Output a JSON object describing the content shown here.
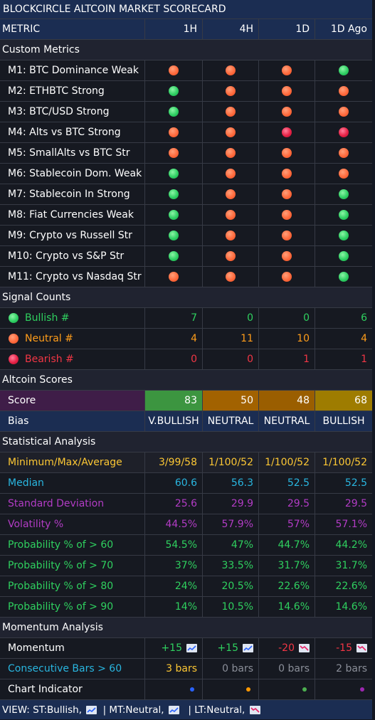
{
  "title": "BLOCKCIRCLE ALTCOIN MARKET SCORECARD",
  "header": {
    "metric": "METRIC",
    "cols": [
      "1H",
      "4H",
      "1D",
      "1D Ago"
    ]
  },
  "sections": {
    "custom": "Custom Metrics",
    "signals": "Signal Counts",
    "scores": "Altcoin Scores",
    "stats": "Statistical Analysis",
    "momentum": "Momentum Analysis"
  },
  "colors": {
    "bullish_dot": "#2fcf63",
    "neutral_dot": "#ff6a3d",
    "bearish_dot": "#e62246",
    "header_bg": "#1b2d52",
    "score_v_bullish": "#3c9540",
    "score_neutral": "#a26200",
    "score_bullish": "#9e7c00"
  },
  "metrics": [
    {
      "label": "M1: BTC Dominance Weak",
      "states": [
        "neutral",
        "neutral",
        "neutral",
        "bullish"
      ]
    },
    {
      "label": "M2: ETHBTC Strong",
      "states": [
        "bullish",
        "neutral",
        "neutral",
        "neutral"
      ]
    },
    {
      "label": "M3: BTC/USD Strong",
      "states": [
        "bullish",
        "neutral",
        "neutral",
        "neutral"
      ]
    },
    {
      "label": "M4: Alts vs BTC Strong",
      "states": [
        "neutral",
        "neutral",
        "bearish",
        "bearish"
      ]
    },
    {
      "label": "M5: SmallAlts vs BTC Str",
      "states": [
        "neutral",
        "neutral",
        "neutral",
        "neutral"
      ]
    },
    {
      "label": "M6: Stablecoin Dom. Weak",
      "states": [
        "bullish",
        "neutral",
        "neutral",
        "neutral"
      ]
    },
    {
      "label": "M7: Stablecoin In Strong",
      "states": [
        "bullish",
        "neutral",
        "neutral",
        "bullish"
      ]
    },
    {
      "label": "M8: Fiat Currencies Weak",
      "states": [
        "bullish",
        "neutral",
        "neutral",
        "bullish"
      ]
    },
    {
      "label": "M9: Crypto vs Russell Str",
      "states": [
        "bullish",
        "neutral",
        "neutral",
        "bullish"
      ]
    },
    {
      "label": "M10: Crypto vs S&P Str",
      "states": [
        "bullish",
        "neutral",
        "neutral",
        "bullish"
      ]
    },
    {
      "label": "M11: Crypto vs Nasdaq Str",
      "states": [
        "neutral",
        "neutral",
        "neutral",
        "bullish"
      ]
    }
  ],
  "signal_counts": {
    "bullish": {
      "label": "Bullish #",
      "values": [
        "7",
        "0",
        "0",
        "6"
      ]
    },
    "neutral": {
      "label": "Neutral #",
      "values": [
        "4",
        "11",
        "10",
        "4"
      ]
    },
    "bearish": {
      "label": "Bearish #",
      "values": [
        "0",
        "0",
        "1",
        "1"
      ]
    }
  },
  "scores": {
    "label": "Score",
    "values": [
      "83",
      "50",
      "48",
      "68"
    ]
  },
  "bias": {
    "label": "Bias",
    "values": [
      "V.BULLISH",
      "NEUTRAL",
      "NEUTRAL",
      "BULLISH"
    ]
  },
  "stats": [
    {
      "key": "minmax",
      "label": "Minimum/Max/Average",
      "values": [
        "3/99/58",
        "1/100/52",
        "1/100/52",
        "1/100/52"
      ]
    },
    {
      "key": "median",
      "label": "Median",
      "values": [
        "60.6",
        "56.3",
        "52.5",
        "52.5"
      ]
    },
    {
      "key": "stdev",
      "label": "Standard Deviation",
      "values": [
        "25.6",
        "29.9",
        "29.5",
        "29.5"
      ]
    },
    {
      "key": "vol",
      "label": "Volatility %",
      "values": [
        "44.5%",
        "57.9%",
        "57%",
        "57.1%"
      ]
    },
    {
      "key": "p60",
      "label": "Probability % of > 60",
      "values": [
        "54.5%",
        "47%",
        "44.7%",
        "44.2%"
      ]
    },
    {
      "key": "p70",
      "label": "Probability % of > 70",
      "values": [
        "37%",
        "33.5%",
        "31.7%",
        "31.7%"
      ]
    },
    {
      "key": "p80",
      "label": "Probability % of > 80",
      "values": [
        "24%",
        "20.5%",
        "22.6%",
        "22.6%"
      ]
    },
    {
      "key": "p90",
      "label": "Probability % of > 90",
      "values": [
        "14%",
        "10.5%",
        "14.6%",
        "14.6%"
      ]
    }
  ],
  "momentum": {
    "label": "Momentum",
    "values": [
      "+15",
      "+15",
      "-20",
      "-15"
    ],
    "trend": [
      "up",
      "up",
      "down",
      "down"
    ]
  },
  "consecutive": {
    "label": "Consecutive Bars > 60",
    "values": [
      "3 bars",
      "0 bars",
      "0 bars",
      "2 bars"
    ]
  },
  "chart_indicator": {
    "label": "Chart Indicator",
    "dots": [
      "blue",
      "orange",
      "green",
      "purple"
    ]
  },
  "footer": {
    "view": "VIEW:",
    "st": "ST:Bullish,",
    "mt": "| MT:Neutral,",
    "lt": "| LT:Neutral,"
  }
}
